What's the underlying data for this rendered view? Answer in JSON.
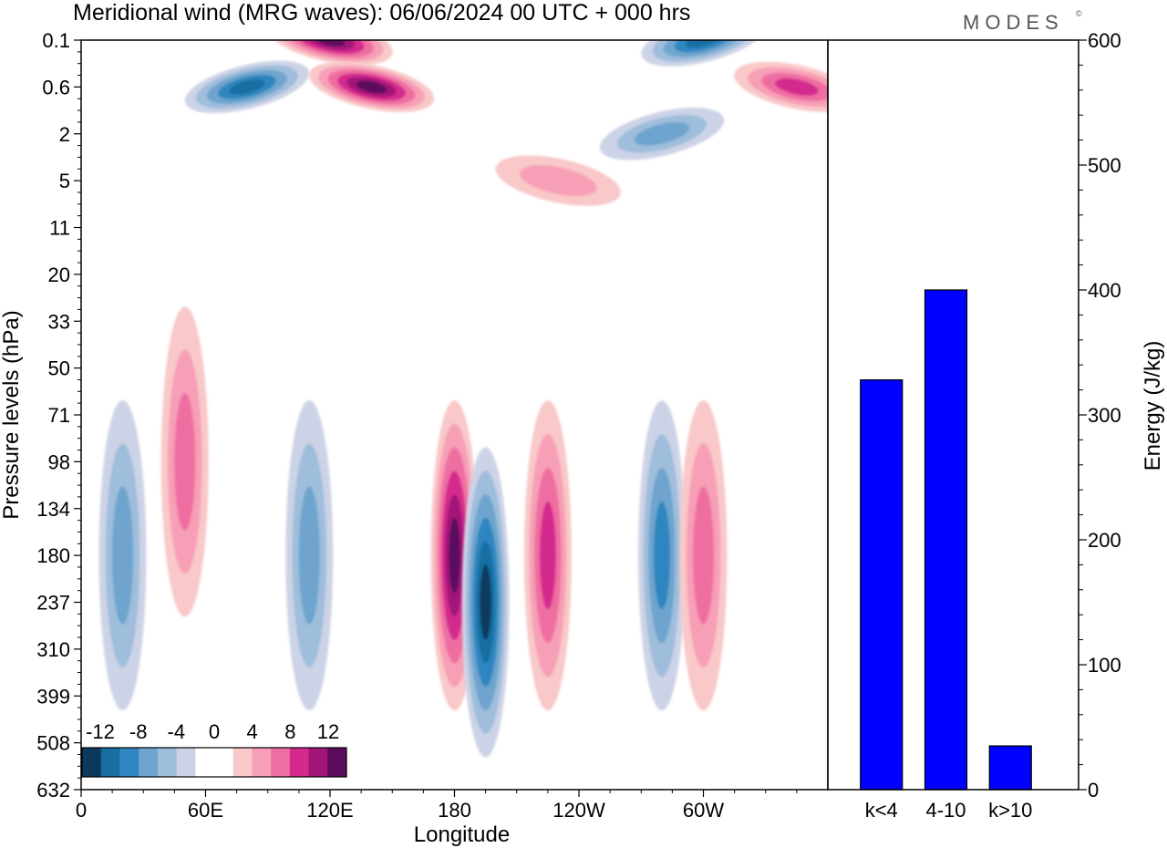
{
  "title": "Meridional wind (MRG waves):  06/06/2024  00 UTC  + 000 hrs",
  "brand": "MODES",
  "brand_mark": "©",
  "colors": {
    "bar": "#0000ff",
    "neg": [
      "#0b3a5c",
      "#166ea3",
      "#2f86c0",
      "#6ea4cd",
      "#9fbedb",
      "#cdd3e6"
    ],
    "pos": [
      "#f9c8c8",
      "#f79fb6",
      "#ef6ea2",
      "#d42a8d",
      "#a11578",
      "#5a0b5e"
    ]
  },
  "chart_data": [
    {
      "type": "heatmap",
      "title": "Meridional wind (MRG waves):  06/06/2024  00 UTC  + 000 hrs",
      "xlabel": "Longitude",
      "ylabel": "Pressure levels (hPa)",
      "x_ticks": [
        "0",
        "60E",
        "120E",
        "180",
        "120W",
        "60W"
      ],
      "y_ticks": [
        "0.1",
        "0.6",
        "2",
        "5",
        "11",
        "20",
        "33",
        "50",
        "71",
        "98",
        "134",
        "180",
        "237",
        "310",
        "399",
        "508",
        "632"
      ],
      "colorbar_ticks": [
        "-12",
        "-8",
        "-4",
        "0",
        "4",
        "8",
        "12"
      ],
      "features": [
        {
          "lon": 180,
          "level": "180",
          "value": 14
        },
        {
          "lon": 195,
          "level": "237",
          "value": -14
        },
        {
          "lon": 225,
          "level": "180",
          "value": 10
        },
        {
          "lon": 110,
          "level": "180",
          "value": -6
        },
        {
          "lon": 280,
          "level": "180",
          "value": -10
        },
        {
          "lon": 300,
          "level": "180",
          "value": 6
        },
        {
          "lon": 20,
          "level": "180",
          "value": -6
        },
        {
          "lon": 50,
          "level": "98",
          "value": 6
        },
        {
          "lon": 80,
          "level": "0.6",
          "value": -12
        },
        {
          "lon": 120,
          "level": "0.1",
          "value": 14
        },
        {
          "lon": 140,
          "level": "0.6",
          "value": 14
        },
        {
          "lon": 300,
          "level": "0.1",
          "value": -12
        },
        {
          "lon": 280,
          "level": "2",
          "value": -8
        },
        {
          "lon": 345,
          "level": "0.6",
          "value": 10
        },
        {
          "lon": 230,
          "level": "5",
          "value": 4
        }
      ]
    },
    {
      "type": "bar",
      "categories": [
        "k<4",
        "4-10",
        "k>10"
      ],
      "values": [
        328,
        400,
        35
      ],
      "ylabel": "Energy (J/kg)",
      "ylim": [
        0,
        600
      ],
      "y_ticks": [
        "0",
        "100",
        "200",
        "300",
        "400",
        "500",
        "600"
      ]
    }
  ]
}
